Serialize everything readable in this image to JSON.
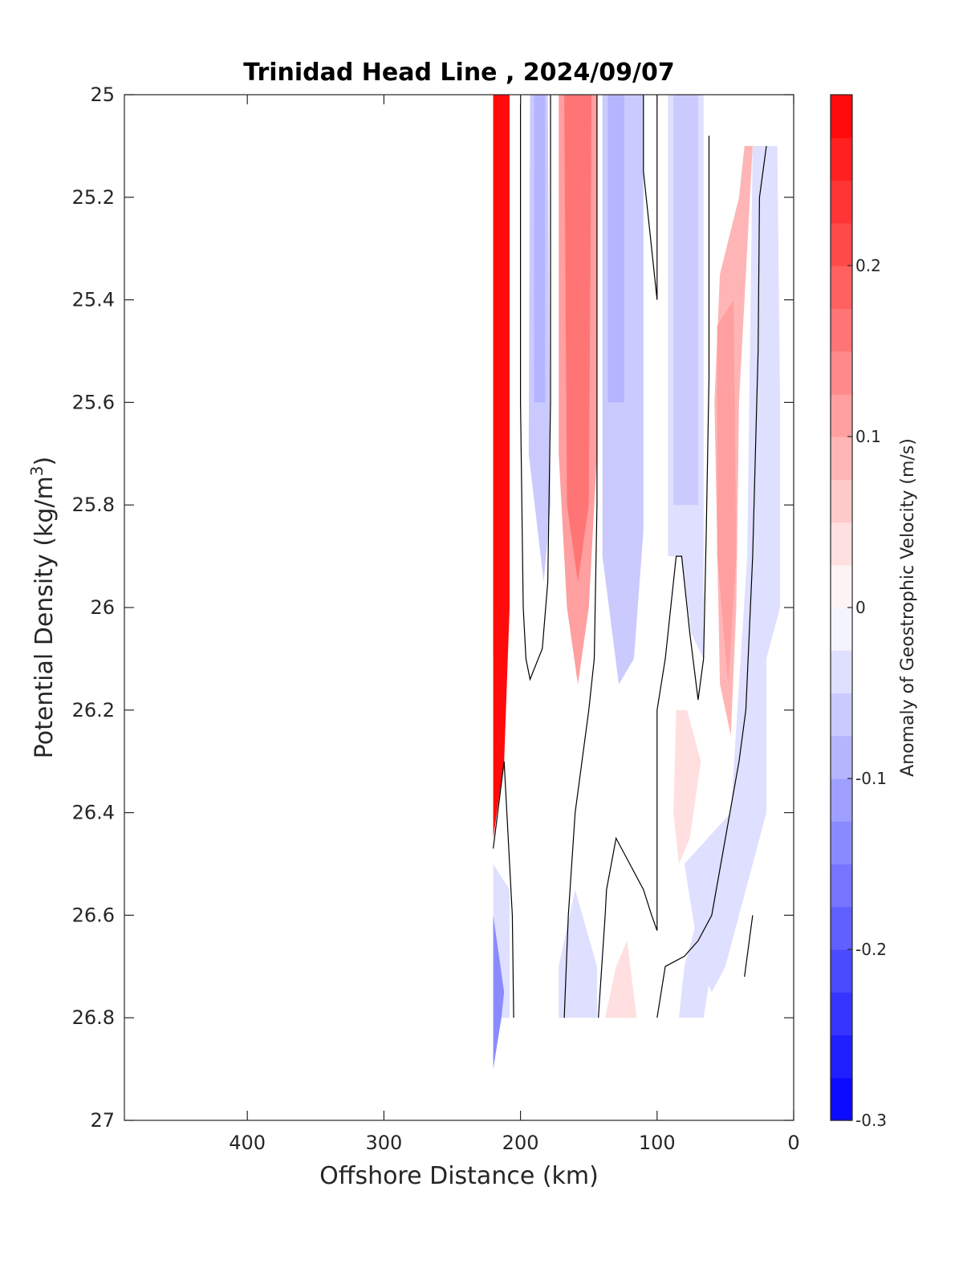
{
  "chart_data": {
    "type": "contourf",
    "title": "Trinidad Head Line , 2024/09/07",
    "xlabel": "Offshore Distance (km)",
    "ylabel_main": "Potential Density (kg/m",
    "ylabel_sup": "3",
    "ylabel_close": ")",
    "colorbar_label": "Anomaly of Geostrophic Velocity (m/s)",
    "xlim": [
      490,
      0
    ],
    "x_reversed": true,
    "ylim": [
      25,
      27
    ],
    "y_reversed": true,
    "x_ticks": [
      {
        "value": 400,
        "label": "400"
      },
      {
        "value": 300,
        "label": "300"
      },
      {
        "value": 200,
        "label": "200"
      },
      {
        "value": 100,
        "label": "100"
      },
      {
        "value": 0,
        "label": "0"
      }
    ],
    "y_ticks": [
      {
        "value": 25,
        "label": "25"
      },
      {
        "value": 25.2,
        "label": "25.2"
      },
      {
        "value": 25.4,
        "label": "25.4"
      },
      {
        "value": 25.6,
        "label": "25.6"
      },
      {
        "value": 25.8,
        "label": "25.8"
      },
      {
        "value": 26,
        "label": "26"
      },
      {
        "value": 26.2,
        "label": "26.2"
      },
      {
        "value": 26.4,
        "label": "26.4"
      },
      {
        "value": 26.6,
        "label": "26.6"
      },
      {
        "value": 26.8,
        "label": "26.8"
      },
      {
        "value": 27,
        "label": "27"
      }
    ],
    "colorbar": {
      "range": [
        -0.3,
        0.3
      ],
      "levels": 24,
      "colors": {
        "negative": "#0000ff",
        "zero": "#ffffff",
        "positive": "#ff0000"
      },
      "ticks": [
        {
          "value": 0.2,
          "label": "0.2"
        },
        {
          "value": 0.1,
          "label": "0.1"
        },
        {
          "value": 0,
          "label": "0"
        },
        {
          "value": -0.1,
          "label": "-0.1"
        },
        {
          "value": -0.2,
          "label": "-0.2"
        },
        {
          "value": -0.3,
          "label": "-0.3"
        }
      ]
    },
    "regions": [
      {
        "name": "positive-anomaly-band-220km",
        "value": 0.28,
        "points": [
          [
            220,
            25
          ],
          [
            208,
            25
          ],
          [
            208,
            26.0
          ],
          [
            212,
            26.3
          ],
          [
            220,
            26.45
          ]
        ]
      },
      {
        "name": "positive-anomaly-core-215km",
        "value": 0.3,
        "points": [
          [
            220,
            25
          ],
          [
            213,
            25
          ],
          [
            213,
            25.9
          ],
          [
            220,
            26.1
          ]
        ]
      },
      {
        "name": "negative-anomaly-band-185km",
        "value": -0.06,
        "points": [
          [
            193,
            25
          ],
          [
            180,
            25
          ],
          [
            178,
            25.8
          ],
          [
            183,
            25.95
          ],
          [
            194,
            25.7
          ]
        ]
      },
      {
        "name": "negative-anomaly-core-185km",
        "value": -0.09,
        "points": [
          [
            190,
            25
          ],
          [
            182,
            25
          ],
          [
            182,
            25.6
          ],
          [
            190,
            25.6
          ]
        ]
      },
      {
        "name": "positive-anomaly-band-160km",
        "value": 0.1,
        "points": [
          [
            172,
            25
          ],
          [
            144,
            25
          ],
          [
            144,
            25.7
          ],
          [
            150,
            26.0
          ],
          [
            158,
            26.15
          ],
          [
            166,
            26.0
          ],
          [
            172,
            25.7
          ]
        ]
      },
      {
        "name": "positive-anomaly-core-160km",
        "value": 0.17,
        "points": [
          [
            168,
            25
          ],
          [
            148,
            25
          ],
          [
            150,
            25.8
          ],
          [
            158,
            25.95
          ],
          [
            166,
            25.8
          ]
        ]
      },
      {
        "name": "negative-anomaly-band-125km",
        "value": -0.07,
        "points": [
          [
            140,
            25
          ],
          [
            110,
            25
          ],
          [
            110,
            25.85
          ],
          [
            117,
            26.1
          ],
          [
            128,
            26.15
          ],
          [
            140,
            25.9
          ]
        ]
      },
      {
        "name": "negative-anomaly-core-130km",
        "value": -0.1,
        "points": [
          [
            136,
            25
          ],
          [
            124,
            25
          ],
          [
            124,
            25.6
          ],
          [
            136,
            25.6
          ]
        ]
      },
      {
        "name": "negative-anomaly-band-75km",
        "value": -0.04,
        "points": [
          [
            92,
            25
          ],
          [
            66,
            25
          ],
          [
            66,
            26.1
          ],
          [
            75,
            26.05
          ],
          [
            82,
            25.9
          ],
          [
            92,
            25.9
          ]
        ]
      },
      {
        "name": "negative-anomaly-core-80km",
        "value": -0.06,
        "points": [
          [
            88,
            25
          ],
          [
            70,
            25
          ],
          [
            70,
            25.8
          ],
          [
            88,
            25.8
          ]
        ]
      },
      {
        "name": "positive-anomaly-band-50km",
        "value": 0.08,
        "points": [
          [
            36,
            25.1
          ],
          [
            30,
            25.1
          ],
          [
            40,
            25.6
          ],
          [
            42,
            26.0
          ],
          [
            46,
            26.25
          ],
          [
            54,
            26.15
          ],
          [
            58,
            25.6
          ],
          [
            54,
            25.35
          ],
          [
            40,
            25.2
          ]
        ]
      },
      {
        "name": "positive-anomaly-core-48km",
        "value": 0.12,
        "points": [
          [
            56,
            25.45
          ],
          [
            44,
            25.4
          ],
          [
            42,
            25.9
          ],
          [
            48,
            26.15
          ],
          [
            56,
            25.9
          ]
        ]
      },
      {
        "name": "positive-anomaly-patch-80km",
        "value": 0.04,
        "points": [
          [
            86,
            26.2
          ],
          [
            78,
            26.2
          ],
          [
            68,
            26.3
          ],
          [
            76,
            26.45
          ],
          [
            84,
            26.5
          ],
          [
            88,
            26.4
          ]
        ]
      },
      {
        "name": "negative-anomaly-band-20km",
        "value": -0.04,
        "points": [
          [
            30,
            25.1
          ],
          [
            12,
            25.1
          ],
          [
            10,
            25.6
          ],
          [
            10,
            26.0
          ],
          [
            20,
            26.1
          ],
          [
            20,
            26.4
          ],
          [
            40,
            26.6
          ],
          [
            50,
            26.7
          ],
          [
            60,
            26.75
          ],
          [
            68,
            26.7
          ],
          [
            80,
            26.5
          ],
          [
            46,
            26.4
          ],
          [
            34,
            25.9
          ],
          [
            32,
            25.5
          ]
        ]
      },
      {
        "name": "negative-anomaly-band-210km",
        "value": -0.05,
        "points": [
          [
            220,
            26.5
          ],
          [
            208,
            26.55
          ],
          [
            208,
            26.8
          ],
          [
            220,
            26.8
          ]
        ]
      },
      {
        "name": "negative-anomaly-core-215km",
        "value": -0.14,
        "points": [
          [
            220,
            26.6
          ],
          [
            212,
            26.75
          ],
          [
            214,
            26.8
          ],
          [
            220,
            26.9
          ]
        ]
      },
      {
        "name": "negative-anomaly-band-160km",
        "value": -0.04,
        "points": [
          [
            172,
            26.8
          ],
          [
            144,
            26.8
          ],
          [
            144,
            26.7
          ],
          [
            160,
            26.55
          ],
          [
            172,
            26.7
          ]
        ]
      },
      {
        "name": "positive-anomaly-patch-130km",
        "value": 0.04,
        "points": [
          [
            138,
            26.8
          ],
          [
            115,
            26.8
          ],
          [
            122,
            26.65
          ],
          [
            130,
            26.7
          ]
        ]
      },
      {
        "name": "negative-anomaly-band-65km",
        "value": -0.05,
        "points": [
          [
            84,
            26.8
          ],
          [
            66,
            26.8
          ],
          [
            60,
            26.7
          ],
          [
            54,
            26.65
          ],
          [
            70,
            26.6
          ],
          [
            80,
            26.7
          ]
        ]
      }
    ],
    "contour_lines": [
      {
        "name": "zero-contour-200km",
        "points": [
          [
            200,
            25
          ],
          [
            200,
            25.6
          ],
          [
            198,
            26.0
          ],
          [
            196,
            26.1
          ],
          [
            193,
            26.14
          ],
          [
            184,
            26.08
          ],
          [
            180,
            25.95
          ],
          [
            178,
            25.6
          ],
          [
            178,
            25
          ]
        ]
      },
      {
        "name": "zero-contour-145km",
        "points": [
          [
            144,
            25
          ],
          [
            144,
            25.8
          ],
          [
            146,
            26.1
          ],
          [
            150,
            26.2
          ],
          [
            155,
            26.3
          ],
          [
            160,
            26.4
          ],
          [
            165,
            26.6
          ],
          [
            168,
            26.8
          ]
        ]
      },
      {
        "name": "zero-contour-100km",
        "points": [
          [
            110,
            25
          ],
          [
            110,
            25.15
          ],
          [
            104,
            25.3
          ],
          [
            100,
            25.4
          ],
          [
            100,
            25
          ]
        ]
      },
      {
        "name": "zero-contour-62km",
        "points": [
          [
            62,
            25.08
          ],
          [
            62,
            25.55
          ],
          [
            64,
            25.85
          ],
          [
            66,
            26.1
          ],
          [
            70,
            26.18
          ],
          [
            76,
            26.05
          ],
          [
            82,
            25.9
          ],
          [
            86,
            25.9
          ],
          [
            90,
            26.0
          ],
          [
            94,
            26.1
          ],
          [
            100,
            26.2
          ],
          [
            100,
            26.63
          ],
          [
            104,
            26.6
          ],
          [
            110,
            26.55
          ],
          [
            120,
            26.5
          ],
          [
            130,
            26.45
          ],
          [
            137,
            26.55
          ],
          [
            138,
            26.6
          ],
          [
            143,
            26.8
          ]
        ]
      },
      {
        "name": "zero-contour-20km",
        "points": [
          [
            20,
            25.1
          ],
          [
            25,
            25.2
          ],
          [
            26,
            25.5
          ],
          [
            30,
            25.9
          ],
          [
            35,
            26.2
          ],
          [
            40,
            26.3
          ],
          [
            50,
            26.45
          ],
          [
            60,
            26.6
          ],
          [
            70,
            26.65
          ],
          [
            80,
            26.68
          ],
          [
            94,
            26.7
          ],
          [
            100,
            26.8
          ]
        ]
      },
      {
        "name": "zero-contour-30km",
        "points": [
          [
            30,
            26.6
          ],
          [
            36,
            26.72
          ]
        ]
      },
      {
        "name": "zero-contour-220km",
        "points": [
          [
            220,
            26.47
          ],
          [
            212,
            26.3
          ],
          [
            210,
            26.4
          ],
          [
            206,
            26.6
          ],
          [
            205,
            26.8
          ]
        ]
      }
    ]
  }
}
